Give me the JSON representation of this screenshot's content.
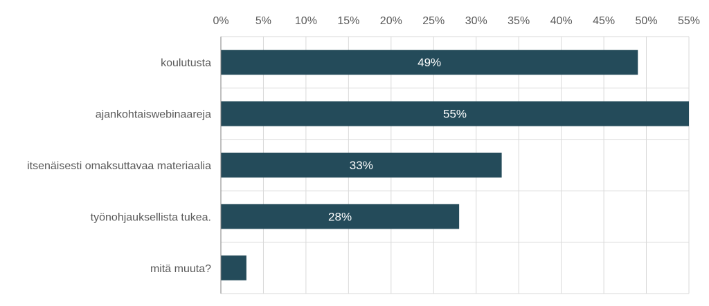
{
  "chart_data": {
    "type": "bar",
    "orientation": "horizontal",
    "categories": [
      "koulutusta",
      "ajankohtaiswebinaareja",
      "itsenäisesti omaksuttavaa materiaalia",
      "työnohjauksellista tukea.",
      "mitä muuta?"
    ],
    "values": [
      49,
      55,
      33,
      28,
      3
    ],
    "data_labels": [
      "49%",
      "55%",
      "33%",
      "28%",
      ""
    ],
    "x_ticks": [
      "0%",
      "5%",
      "10%",
      "15%",
      "20%",
      "25%",
      "30%",
      "35%",
      "40%",
      "45%",
      "50%",
      "55%"
    ],
    "xlim": [
      0,
      55
    ],
    "x_axis_position": "top",
    "grid": true,
    "legend": "none",
    "bar_color": "#244b5a"
  }
}
